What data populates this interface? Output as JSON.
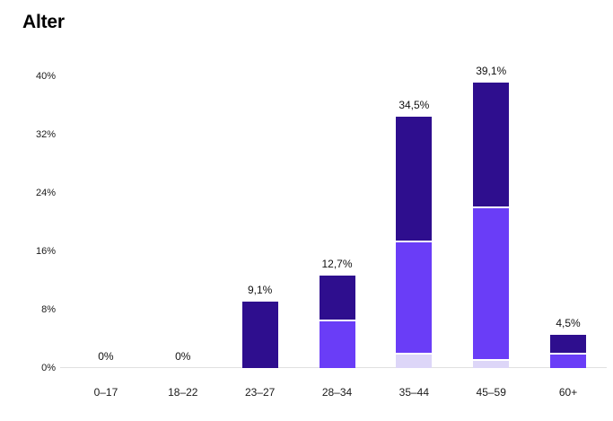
{
  "page": {
    "title": "Alter"
  },
  "chart_data": {
    "type": "bar",
    "stacked": true,
    "title": "Alter",
    "categories": [
      "0–17",
      "18–22",
      "23–27",
      "28–34",
      "35–44",
      "45–59",
      "60+"
    ],
    "series": [
      {
        "name": "light-lavender",
        "color": "#ddd6f8",
        "values": [
          0,
          0,
          0,
          0,
          1.8,
          1.0,
          0
        ]
      },
      {
        "name": "violet",
        "color": "#6a3df7",
        "values": [
          0,
          0,
          0,
          6.4,
          15.4,
          20.9,
          1.8
        ]
      },
      {
        "name": "indigo",
        "color": "#2e0e8e",
        "values": [
          0,
          0,
          9.1,
          6.3,
          17.3,
          17.2,
          2.7
        ]
      }
    ],
    "totals": [
      0,
      0,
      9.1,
      12.7,
      34.5,
      39.1,
      4.5
    ],
    "total_labels": [
      "0%",
      "0%",
      "9,1%",
      "12,7%",
      "34,5%",
      "39,1%",
      "4,5%"
    ],
    "y_ticks": [
      "0%",
      "8%",
      "16%",
      "24%",
      "32%",
      "40%"
    ],
    "ylim": [
      0,
      40
    ],
    "grid": false,
    "legend": "none",
    "xlabel": "",
    "ylabel": ""
  }
}
